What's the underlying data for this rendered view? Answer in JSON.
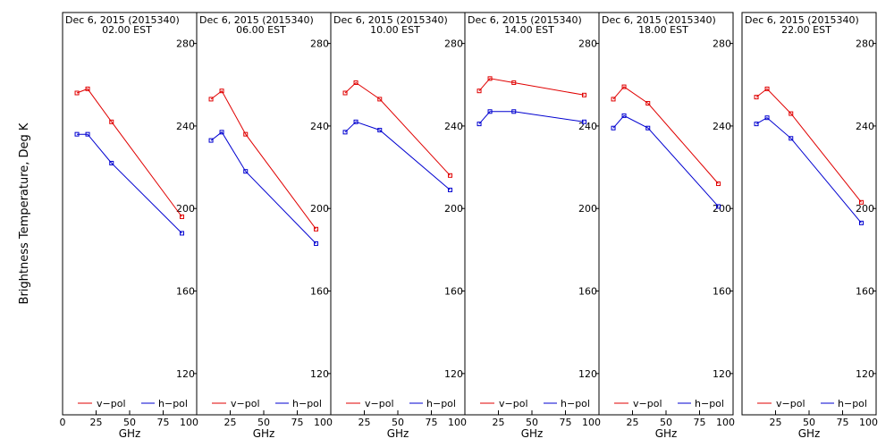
{
  "colors": {
    "vpol": "#e00000",
    "hpol": "#0000d0",
    "axis": "#000000",
    "background": "#ffffff"
  },
  "chart_data": {
    "type": "line",
    "ylabel": "Brightness Temperature, Deg K",
    "xlabel": "GHz",
    "xlim": [
      0,
      100
    ],
    "ylim": [
      100,
      295
    ],
    "yticks": [
      120,
      160,
      200,
      240,
      280
    ],
    "xtick_labels_first": [
      "0",
      "25",
      "50",
      "75",
      "100"
    ],
    "xtick_labels_other": [
      "25",
      "50",
      "75",
      "100"
    ],
    "legend": [
      {
        "name": "v-pol",
        "label": "v−pol"
      },
      {
        "name": "h-pol",
        "label": "h−pol"
      }
    ],
    "panels": [
      {
        "date": "Dec  6, 2015 (2015340)",
        "time": "02.00 EST",
        "series": [
          {
            "name": "v-pol",
            "x": [
              10.7,
              18.7,
              36.5,
              89.0
            ],
            "y": [
              256,
              258,
              242,
              196
            ]
          },
          {
            "name": "h-pol",
            "x": [
              10.7,
              18.7,
              36.5,
              89.0
            ],
            "y": [
              236,
              236,
              222,
              188
            ]
          }
        ]
      },
      {
        "date": "Dec  6, 2015 (2015340)",
        "time": "06.00 EST",
        "series": [
          {
            "name": "v-pol",
            "x": [
              10.7,
              18.7,
              36.5,
              89.0
            ],
            "y": [
              253,
              257,
              236,
              190
            ]
          },
          {
            "name": "h-pol",
            "x": [
              10.7,
              18.7,
              36.5,
              89.0
            ],
            "y": [
              233,
              237,
              218,
              183
            ]
          }
        ]
      },
      {
        "date": "Dec  6, 2015 (2015340)",
        "time": "10.00 EST",
        "series": [
          {
            "name": "v-pol",
            "x": [
              10.7,
              18.7,
              36.5,
              89.0
            ],
            "y": [
              256,
              261,
              253,
              216
            ]
          },
          {
            "name": "h-pol",
            "x": [
              10.7,
              18.7,
              36.5,
              89.0
            ],
            "y": [
              237,
              242,
              238,
              209
            ]
          }
        ]
      },
      {
        "date": "Dec  6, 2015 (2015340)",
        "time": "14.00 EST",
        "series": [
          {
            "name": "v-pol",
            "x": [
              10.7,
              18.7,
              36.5,
              89.0
            ],
            "y": [
              257,
              263,
              261,
              255
            ]
          },
          {
            "name": "h-pol",
            "x": [
              10.7,
              18.7,
              36.5,
              89.0
            ],
            "y": [
              241,
              247,
              247,
              242
            ]
          }
        ]
      },
      {
        "date": "Dec  6, 2015 (2015340)",
        "time": "18.00 EST",
        "series": [
          {
            "name": "v-pol",
            "x": [
              10.7,
              18.7,
              36.5,
              89.0
            ],
            "y": [
              253,
              259,
              251,
              212
            ]
          },
          {
            "name": "h-pol",
            "x": [
              10.7,
              18.7,
              36.5,
              89.0
            ],
            "y": [
              239,
              245,
              239,
              201
            ]
          }
        ]
      },
      {
        "date": "Dec  6, 2015 (2015340)",
        "time": "22.00 EST",
        "series": [
          {
            "name": "v-pol",
            "x": [
              10.7,
              18.7,
              36.5,
              89.0
            ],
            "y": [
              254,
              258,
              246,
              203
            ]
          },
          {
            "name": "h-pol",
            "x": [
              10.7,
              18.7,
              36.5,
              89.0
            ],
            "y": [
              241,
              244,
              234,
              193
            ]
          }
        ]
      }
    ]
  }
}
